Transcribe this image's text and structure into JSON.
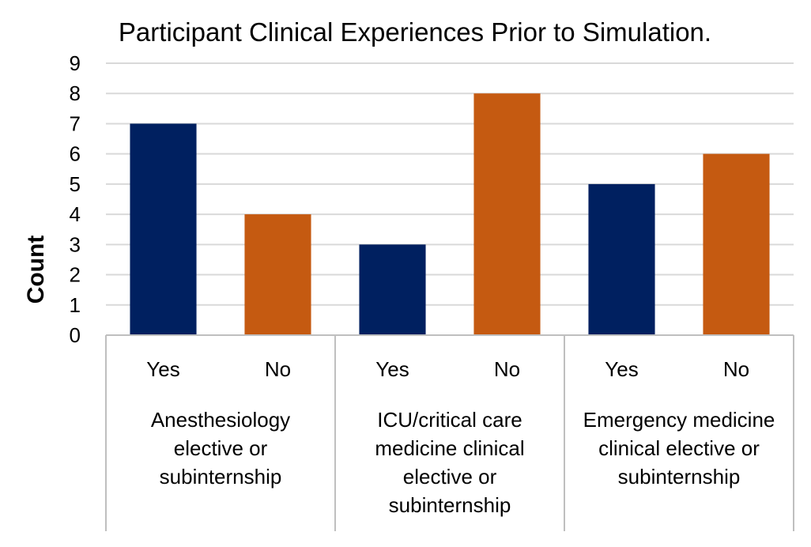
{
  "chart_data": {
    "type": "bar",
    "title": "Participant Clinical Experiences Prior to Simulation.",
    "ylabel": "Count",
    "xlabel": "",
    "ylim": [
      0,
      9
    ],
    "yticks": [
      0,
      1,
      2,
      3,
      4,
      5,
      6,
      7,
      8,
      9
    ],
    "grid": true,
    "legend": "none",
    "groups": [
      {
        "label_lines": [
          "Anesthesiology",
          "elective or",
          "subinternship"
        ],
        "bars": [
          {
            "label": "Yes",
            "value": 7
          },
          {
            "label": "No",
            "value": 4
          }
        ]
      },
      {
        "label_lines": [
          "ICU/critical care",
          "medicine clinical",
          "elective or",
          "subinternship"
        ],
        "bars": [
          {
            "label": "Yes",
            "value": 3
          },
          {
            "label": "No",
            "value": 8
          }
        ]
      },
      {
        "label_lines": [
          "Emergency medicine",
          "clinical elective or",
          "subinternship"
        ],
        "bars": [
          {
            "label": "Yes",
            "value": 5
          },
          {
            "label": "No",
            "value": 6
          }
        ]
      }
    ],
    "colors": {
      "Yes": "#002060",
      "No": "#C55A11",
      "grid": "#D9D9D9",
      "axis": "#BFBFBF"
    }
  }
}
